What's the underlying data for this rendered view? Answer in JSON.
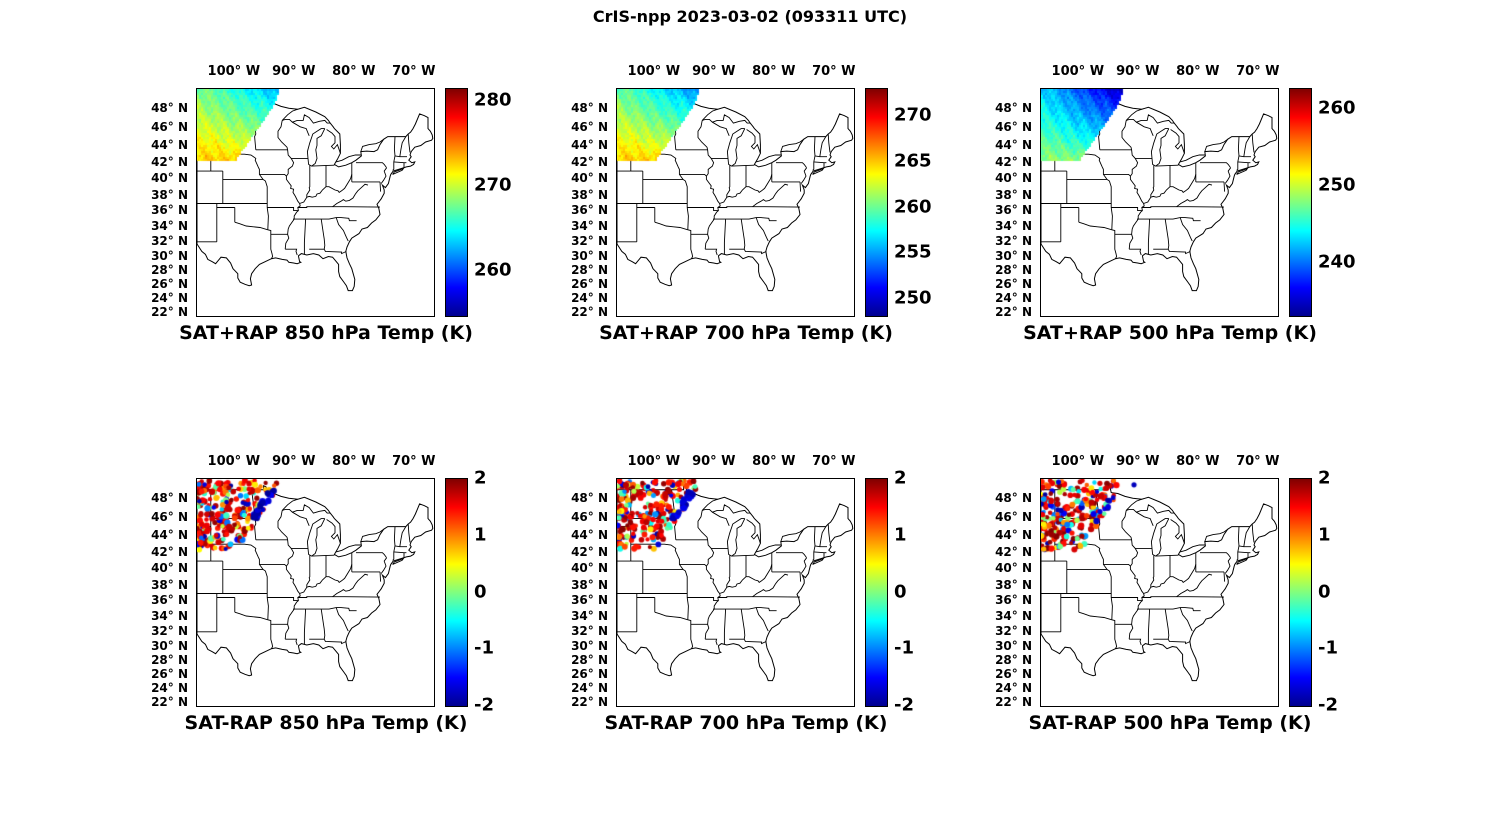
{
  "figure_title": "CrIS-npp 2023-03-02 (093311 UTC)",
  "axis": {
    "x_tick_labels": [
      "100° W",
      "90° W",
      "80° W",
      "70° W"
    ],
    "x_tick_lons_deg_west": [
      100,
      90,
      80,
      70
    ],
    "y_tick_labels": [
      "48° N",
      "46° N",
      "44° N",
      "42° N",
      "40° N",
      "38° N",
      "36° N",
      "34° N",
      "32° N",
      "30° N",
      "28° N",
      "26° N",
      "24° N",
      "22° N"
    ],
    "y_tick_lats_deg_north": [
      48,
      46,
      44,
      42,
      40,
      38,
      36,
      34,
      32,
      30,
      28,
      26,
      24,
      22
    ]
  },
  "panels": [
    {
      "title": "SAT+RAP 850 hPa Temp (K)",
      "kind": "field",
      "colorbar": {
        "min": 254.7,
        "max": 281.4,
        "ticks": [
          260,
          270,
          280
        ]
      }
    },
    {
      "title": "SAT+RAP 700 hPa Temp (K)",
      "kind": "field",
      "colorbar": {
        "min": 248.1,
        "max": 273.0,
        "ticks": [
          250,
          255,
          260,
          265,
          270
        ]
      }
    },
    {
      "title": "SAT+RAP 500 hPa Temp (K)",
      "kind": "field",
      "colorbar": {
        "min": 233.1,
        "max": 262.6,
        "ticks": [
          240,
          250,
          260
        ]
      }
    },
    {
      "title": "SAT-RAP 850 hPa Temp (K)",
      "kind": "scatter",
      "colorbar": {
        "min": -2,
        "max": 2,
        "ticks": [
          -2,
          -1,
          0,
          1,
          2
        ]
      }
    },
    {
      "title": "SAT-RAP 700 hPa Temp (K)",
      "kind": "scatter",
      "colorbar": {
        "min": -2,
        "max": 2,
        "ticks": [
          -2,
          -1,
          0,
          1,
          2
        ]
      }
    },
    {
      "title": "SAT-RAP 500 hPa Temp (K)",
      "kind": "scatter",
      "colorbar": {
        "min": -2,
        "max": 2,
        "ticks": [
          -2,
          -1,
          0,
          1,
          2
        ]
      }
    }
  ],
  "chart_data": {
    "type": "heatmap",
    "figure_title": "CrIS-npp 2023-03-02 (093311 UTC)",
    "layout": "2 rows x 3 columns of identical eastern-CONUS maps with jet colorbars",
    "map_extent": {
      "lon_deg_west": [
        106.3,
        66.8
      ],
      "lat_deg_north": [
        21.5,
        50.1
      ]
    },
    "lon_ticks_deg_west": [
      100,
      90,
      80,
      70
    ],
    "lat_ticks_deg_north": [
      22,
      24,
      26,
      28,
      30,
      32,
      34,
      36,
      38,
      40,
      42,
      44,
      46,
      48
    ],
    "satellite_swath_extent": {
      "lon_deg_west": [
        106.3,
        92.5
      ],
      "lat_deg_north": [
        42.2,
        50.1
      ],
      "shape": "parallelogram swath over MT/WY/ND/SD/NE/MN corner of the maps"
    },
    "maps": [
      {
        "row": 1,
        "col": 1,
        "title": "SAT+RAP 850 hPa Temp (K)",
        "type": "heatmap",
        "units": "K",
        "colorbar_ticks": [
          260,
          270,
          280
        ],
        "colorbar_range": [
          255,
          281
        ],
        "values_summary": "retrieved 850 hPa temps ~258-273 K; cyan (~259-261 K) along NE edge of swath, green (~264-267 K) core, yellow (~270-273 K) along S and SW edge"
      },
      {
        "row": 1,
        "col": 2,
        "title": "SAT+RAP 700 hPa Temp (K)",
        "type": "heatmap",
        "units": "K",
        "colorbar_ticks": [
          250,
          255,
          260,
          265,
          270
        ],
        "colorbar_range": [
          248,
          273
        ],
        "values_summary": "retrieved 700 hPa temps ~252-266 K; cyan (~254 K) along N edge, green (~259-261 K) core, yellow patch (~264-266 K) at SW corner of swath"
      },
      {
        "row": 1,
        "col": 3,
        "title": "SAT+RAP 500 hPa Temp (K)",
        "type": "heatmap",
        "units": "K",
        "colorbar_ticks": [
          240,
          250,
          260
        ],
        "colorbar_range": [
          233,
          263
        ],
        "values_summary": "retrieved 500 hPa temps ~236-251 K; dark blue (~236-239 K) NE part of swath, cyan (~243-246 K) core, green (~248-251 K) along W edge"
      },
      {
        "row": 2,
        "col": 1,
        "title": "SAT-RAP 850 hPa Temp (K)",
        "type": "scatter",
        "units": "K",
        "colorbar_ticks": [
          -2,
          -1,
          0,
          1,
          2
        ],
        "colorbar_range": [
          -2,
          2
        ],
        "values_summary": "SAT minus RAP differences as dots: mostly +1 to +2 K (red/dark red) over the swath, cluster of -2 K (dark blue) dots near the E swath edge ~96W 46-49N, scattered cyan ~-1 K dots"
      },
      {
        "row": 2,
        "col": 2,
        "title": "SAT-RAP 700 hPa Temp (K)",
        "type": "scatter",
        "units": "K",
        "colorbar_ticks": [
          -2,
          -1,
          0,
          1,
          2
        ],
        "colorbar_range": [
          -2,
          2
        ],
        "values_summary": "mostly +1 to +2 K (red/orange) dots, dark-blue -2 K cluster along E swath edge ~95-96W 46-49N, cyan -0.5 to -1 K dots near S edge of swath"
      },
      {
        "row": 2,
        "col": 3,
        "title": "SAT-RAP 500 hPa Temp (K)",
        "type": "scatter",
        "units": "K",
        "colorbar_ticks": [
          -2,
          -1,
          0,
          1,
          2
        ],
        "colorbar_range": [
          -2,
          2
        ],
        "values_summary": "predominantly +1.5 to +2 K (dark red) dots over swath with scattered cyan/green 0 to -1 K dots in core, a few -2 K blue dots near E edge and one isolated blue dot ~91W 49.5N"
      }
    ]
  }
}
